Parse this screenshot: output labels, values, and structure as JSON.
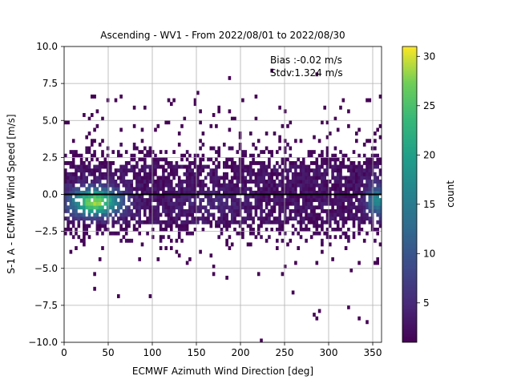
{
  "chart_data": {
    "type": "heatmap",
    "title": "Ascending - WV1 - From 2022/08/01 to 2022/08/30",
    "xlabel": "ECMWF Azimuth Wind Direction [deg]",
    "ylabel": "S-1 A - ECMWF Wind Speed [m/s]",
    "xlim": [
      0,
      360
    ],
    "ylim": [
      -10,
      10
    ],
    "xticks": [
      "0",
      "50",
      "100",
      "150",
      "200",
      "250",
      "300",
      "350"
    ],
    "yticks": [
      "−10.0",
      "−7.5",
      "−5.0",
      "−2.5",
      "0.0",
      "2.5",
      "5.0",
      "7.5",
      "10.0"
    ],
    "grid": true,
    "colormap": "viridis",
    "colorbar": {
      "label": "count",
      "range": [
        1,
        31
      ],
      "ticks": [
        "5",
        "10",
        "15",
        "20",
        "25",
        "30"
      ]
    },
    "annotations": [
      "Bias :-0.02 m/s",
      "Stdv:1.324 m/s"
    ],
    "reference_line": {
      "y": 0,
      "color": "#000000"
    },
    "bin_width": [
      3,
      0.25
    ],
    "density": {
      "dense_core_y": [
        -2.0,
        2.0
      ],
      "peak_x": 35,
      "peak_y": -0.5,
      "peak_count": 30,
      "secondary_peak_x": 355,
      "secondary_peak_count": 14
    }
  }
}
